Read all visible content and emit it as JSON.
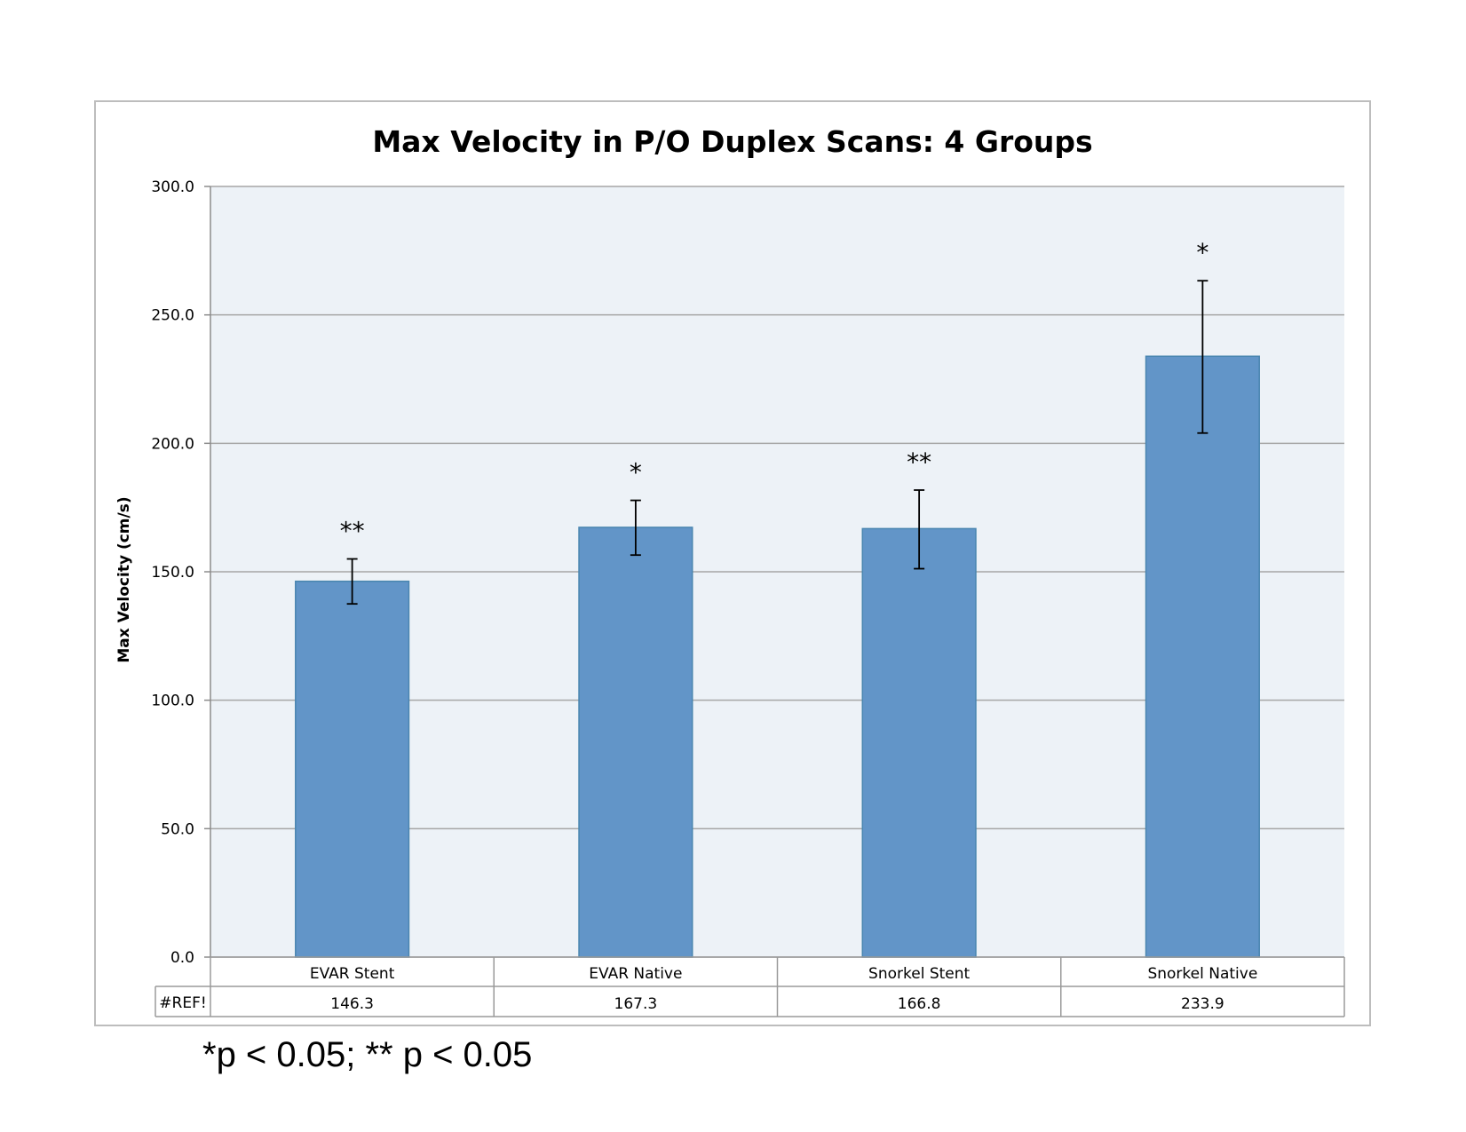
{
  "chart_data": {
    "type": "bar",
    "title": "Max Velocity in P/O Duplex Scans: 4 Groups",
    "ylabel": "Max Velocity (cm/s)",
    "xlabel": "",
    "categories": [
      "EVAR Stent",
      "EVAR Native",
      "Snorkel Stent",
      "Snorkel Native"
    ],
    "values": [
      146.3,
      167.3,
      166.8,
      233.9
    ],
    "error_low": [
      137.5,
      156.5,
      151.2,
      204.0
    ],
    "error_high": [
      155.0,
      177.8,
      181.8,
      263.3
    ],
    "significance": [
      "**",
      "*",
      "**",
      "*"
    ],
    "ylim": [
      0,
      300
    ],
    "yticks": [
      "0.0",
      "50.0",
      "100.0",
      "150.0",
      "200.0",
      "250.0",
      "300.0"
    ],
    "grid": true,
    "bar_color": "#6295c8",
    "data_table": {
      "row_label": "#REF!",
      "values": [
        "146.3",
        "167.3",
        "166.8",
        "233.9"
      ]
    }
  },
  "footnote": "*p < 0.05; ** p < 0.05"
}
